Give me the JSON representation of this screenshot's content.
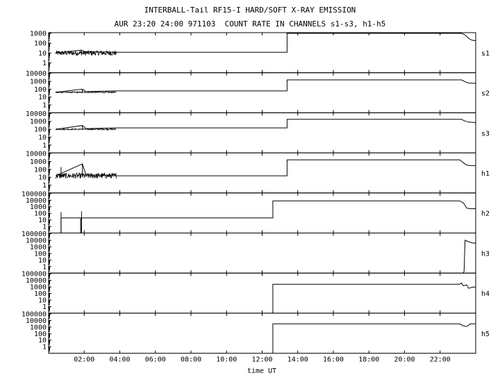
{
  "header": {
    "title_line1": "INTERBALL-Tail RF15-I HARD/SOFT X-RAY EMISSION",
    "title_line2": "AUR 23:20 24:00 971103  COUNT RATE IN CHANNELS s1-s3, h1-h5"
  },
  "chart_data": {
    "type": "line",
    "title": "INTERBALL-Tail RF15-I HARD/SOFT X-RAY EMISSION",
    "subtitle": "AUR 23:20 24:00 971103  COUNT RATE IN CHANNELS s1-s3, h1-h5",
    "xlabel": "time UT",
    "x_unit": "hours UT",
    "xlim": [
      0,
      24
    ],
    "x_ticks": [
      "02:00",
      "04:00",
      "06:00",
      "08:00",
      "10:00",
      "12:00",
      "14:00",
      "16:00",
      "18:00",
      "20:00",
      "22:00"
    ],
    "x_tick_hours": [
      2,
      4,
      6,
      8,
      10,
      12,
      14,
      16,
      18,
      20,
      22
    ],
    "yscale": "log",
    "panels": [
      {
        "name": "s1",
        "ylim": [
          0.1,
          1000
        ],
        "y_ticks": [
          1,
          10,
          100,
          1000
        ],
        "y_tick_labels": [
          "1",
          "10",
          "100",
          "1000"
        ],
        "noise_range": [
          0.4,
          3.8
        ],
        "noise_base": 10,
        "noise_amp": 0.25,
        "spikes": [
          {
            "x": 1.85,
            "y": 20
          }
        ],
        "points": [
          [
            0.4,
            10
          ],
          [
            1.85,
            20
          ],
          [
            2.0,
            14
          ],
          [
            3.8,
            12
          ],
          [
            13.4,
            12
          ],
          [
            13.4,
            1000
          ],
          [
            23.2,
            1000
          ],
          [
            23.4,
            700
          ],
          [
            23.6,
            300
          ],
          [
            23.8,
            200
          ],
          [
            24,
            180
          ]
        ]
      },
      {
        "name": "s2",
        "ylim": [
          0.1,
          10000
        ],
        "y_ticks": [
          1,
          10,
          100,
          1000,
          10000
        ],
        "y_tick_labels": [
          "1",
          "10",
          "100",
          "1000",
          "10000"
        ],
        "noise_range": [
          0.4,
          3.8
        ],
        "noise_base": 40,
        "noise_amp": 0.08,
        "spikes": [
          {
            "x": 1.9,
            "y": 100
          }
        ],
        "points": [
          [
            0.4,
            40
          ],
          [
            1.9,
            100
          ],
          [
            2.1,
            50
          ],
          [
            3.8,
            60
          ],
          [
            13.4,
            60
          ],
          [
            13.4,
            1500
          ],
          [
            23.2,
            1500
          ],
          [
            23.4,
            900
          ],
          [
            23.6,
            600
          ],
          [
            24,
            550
          ]
        ]
      },
      {
        "name": "s3",
        "ylim": [
          0.1,
          10000
        ],
        "y_ticks": [
          1,
          10,
          100,
          1000,
          10000
        ],
        "y_tick_labels": [
          "1",
          "10",
          "100",
          "1000",
          "10000"
        ],
        "noise_range": [
          0.4,
          3.8
        ],
        "noise_base": 100,
        "noise_amp": 0.08,
        "spikes": [
          {
            "x": 1.9,
            "y": 300
          }
        ],
        "points": [
          [
            0.4,
            100
          ],
          [
            1.9,
            300
          ],
          [
            2.1,
            120
          ],
          [
            3.8,
            150
          ],
          [
            13.4,
            150
          ],
          [
            13.4,
            1800
          ],
          [
            23.2,
            1800
          ],
          [
            23.4,
            1100
          ],
          [
            23.6,
            800
          ],
          [
            24,
            700
          ]
        ]
      },
      {
        "name": "h1",
        "ylim": [
          0.1,
          10000
        ],
        "y_ticks": [
          1,
          10,
          100,
          1000,
          10000
        ],
        "y_tick_labels": [
          "1",
          "10",
          "100",
          "1000",
          "10000"
        ],
        "noise_range": [
          0.4,
          3.8
        ],
        "noise_base": 15,
        "noise_amp": 0.35,
        "spikes": [
          {
            "x": 0.7,
            "y": 200
          },
          {
            "x": 1.9,
            "y": 500
          }
        ],
        "points": [
          [
            0.4,
            15
          ],
          [
            1.9,
            500
          ],
          [
            2.1,
            20
          ],
          [
            3.8,
            15
          ],
          [
            13.4,
            15
          ],
          [
            13.4,
            1600
          ],
          [
            23.1,
            1600
          ],
          [
            23.3,
            700
          ],
          [
            23.5,
            350
          ],
          [
            23.7,
            300
          ],
          [
            24,
            300
          ]
        ]
      },
      {
        "name": "h2",
        "ylim": [
          0.1,
          100000
        ],
        "y_ticks": [
          1,
          10,
          100,
          1000,
          10000,
          100000
        ],
        "y_tick_labels": [
          "1",
          "10",
          "100",
          "1000",
          "10000",
          "100000"
        ],
        "spikes": [
          {
            "x": 0.7,
            "y": 150
          },
          {
            "x": 1.85,
            "y": 200
          }
        ],
        "points": [
          [
            0.7,
            0.1
          ],
          [
            0.7,
            20
          ],
          [
            1.8,
            20
          ],
          [
            1.8,
            0.1
          ],
          [
            1.85,
            0.1
          ],
          [
            1.85,
            20
          ],
          [
            12.6,
            20
          ],
          [
            12.6,
            8000
          ],
          [
            23.1,
            8000
          ],
          [
            23.3,
            4000
          ],
          [
            23.5,
            600
          ],
          [
            23.7,
            500
          ],
          [
            24,
            500
          ]
        ]
      },
      {
        "name": "h3",
        "ylim": [
          0.1,
          100000
        ],
        "y_ticks": [
          1,
          10,
          100,
          1000,
          10000,
          100000
        ],
        "y_tick_labels": [
          "1",
          "10",
          "100",
          "1000",
          "10000",
          "100000"
        ],
        "spikes": [],
        "points": [
          [
            23.3,
            0.1
          ],
          [
            23.35,
            0.2
          ],
          [
            23.4,
            10000
          ],
          [
            23.6,
            6000
          ],
          [
            23.8,
            4000
          ],
          [
            24,
            3500
          ]
        ]
      },
      {
        "name": "h4",
        "ylim": [
          0.1,
          100000
        ],
        "y_ticks": [
          1,
          10,
          100,
          1000,
          10000,
          100000
        ],
        "y_tick_labels": [
          "1",
          "10",
          "100",
          "1000",
          "10000",
          "100000"
        ],
        "spikes": [],
        "points": [
          [
            12.6,
            0.1
          ],
          [
            12.6,
            2500
          ],
          [
            23.1,
            2500
          ],
          [
            23.2,
            4000
          ],
          [
            23.3,
            1500
          ],
          [
            23.5,
            2000
          ],
          [
            23.6,
            600
          ],
          [
            23.8,
            900
          ],
          [
            24,
            1000
          ]
        ]
      },
      {
        "name": "h5",
        "ylim": [
          0.1,
          100000
        ],
        "y_ticks": [
          1,
          10,
          100,
          1000,
          10000,
          100000
        ],
        "y_tick_labels": [
          "1",
          "10",
          "100",
          "1000",
          "10000",
          "100000"
        ],
        "spikes": [],
        "points": [
          [
            12.6,
            0.1
          ],
          [
            12.6,
            3000
          ],
          [
            23.1,
            3000
          ],
          [
            23.3,
            1500
          ],
          [
            23.5,
            1200
          ],
          [
            23.7,
            3000
          ],
          [
            24,
            3000
          ]
        ]
      }
    ]
  }
}
